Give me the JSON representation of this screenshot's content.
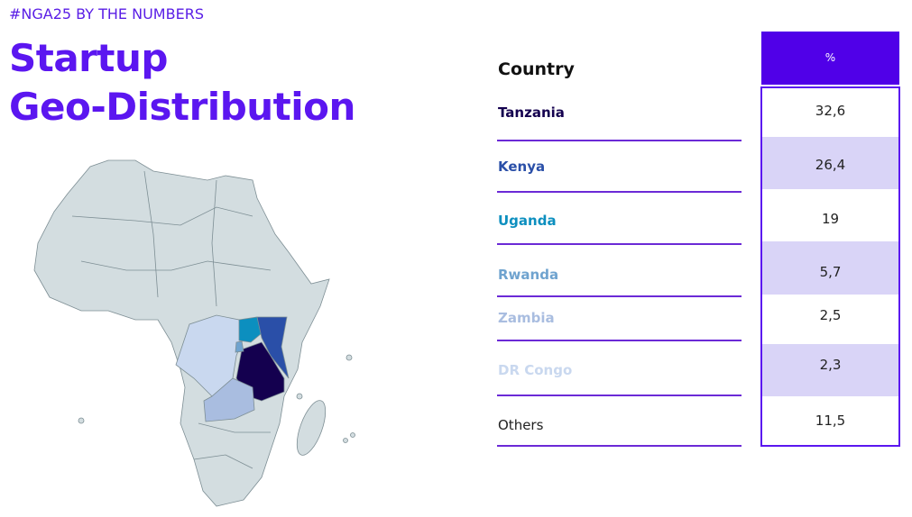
{
  "header": {
    "tag": "#NGA25 BY THE NUMBERS",
    "title_lines": [
      "Startup",
      "Geo-Distribution"
    ]
  },
  "table": {
    "columns": [
      "Country",
      "%"
    ],
    "rows": [
      [
        "Tanzania",
        "32,6"
      ],
      [
        "Kenya",
        "26,4"
      ],
      [
        "Uganda",
        "19"
      ],
      [
        "Rwanda",
        "5,7"
      ],
      [
        "Zambia",
        "2,5"
      ],
      [
        "DR Congo",
        "2,3"
      ],
      [
        "Others",
        "11,5"
      ]
    ]
  }
}
